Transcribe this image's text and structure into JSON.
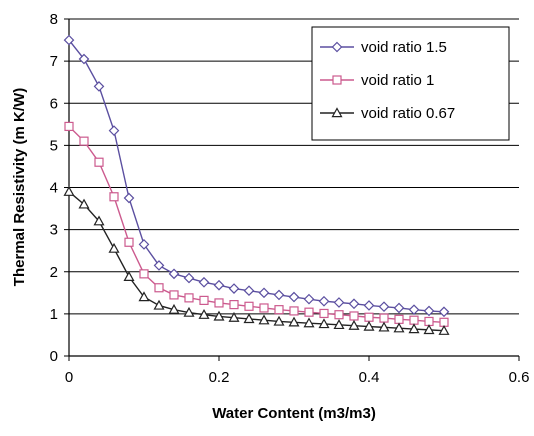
{
  "chart_data": {
    "type": "line",
    "xlabel": "Water Content (m3/m3)",
    "ylabel": "Thermal Resistivity (m K/W)",
    "xlim": [
      0,
      0.6
    ],
    "ylim": [
      0,
      8
    ],
    "x_ticks": [
      0,
      0.2,
      0.4,
      0.6
    ],
    "x_tick_labels": [
      "0",
      "0.2",
      "0.4",
      "0.6"
    ],
    "y_ticks": [
      0,
      1,
      2,
      3,
      4,
      5,
      6,
      7,
      8
    ],
    "y_tick_labels": [
      "0",
      "1",
      "2",
      "3",
      "4",
      "5",
      "6",
      "7",
      "8"
    ],
    "grid": "horizontal",
    "legend_position": "top-right",
    "x": [
      0,
      0.02,
      0.04,
      0.06,
      0.08,
      0.1,
      0.12,
      0.14,
      0.16,
      0.18,
      0.2,
      0.22,
      0.24,
      0.26,
      0.28,
      0.3,
      0.32,
      0.34,
      0.36,
      0.38,
      0.4,
      0.42,
      0.44,
      0.46,
      0.48,
      0.5
    ],
    "series": [
      {
        "name": "void ratio 1.5",
        "marker": "diamond",
        "color": "#5b4fa0",
        "values": [
          7.5,
          7.05,
          6.4,
          5.35,
          3.75,
          2.65,
          2.15,
          1.95,
          1.85,
          1.75,
          1.68,
          1.6,
          1.55,
          1.5,
          1.45,
          1.4,
          1.35,
          1.3,
          1.27,
          1.24,
          1.2,
          1.17,
          1.14,
          1.1,
          1.07,
          1.05
        ]
      },
      {
        "name": "void ratio 1",
        "marker": "square",
        "color": "#cc5a8e",
        "values": [
          5.45,
          5.1,
          4.6,
          3.78,
          2.7,
          1.95,
          1.62,
          1.45,
          1.38,
          1.32,
          1.26,
          1.22,
          1.18,
          1.14,
          1.1,
          1.07,
          1.04,
          1.01,
          0.98,
          0.95,
          0.92,
          0.9,
          0.87,
          0.85,
          0.82,
          0.8
        ]
      },
      {
        "name": "void ratio 0.67",
        "marker": "triangle",
        "color": "#222222",
        "values": [
          3.9,
          3.6,
          3.2,
          2.55,
          1.88,
          1.4,
          1.2,
          1.1,
          1.03,
          0.98,
          0.94,
          0.91,
          0.88,
          0.85,
          0.82,
          0.8,
          0.78,
          0.76,
          0.74,
          0.72,
          0.7,
          0.68,
          0.66,
          0.64,
          0.62,
          0.6
        ]
      }
    ]
  }
}
